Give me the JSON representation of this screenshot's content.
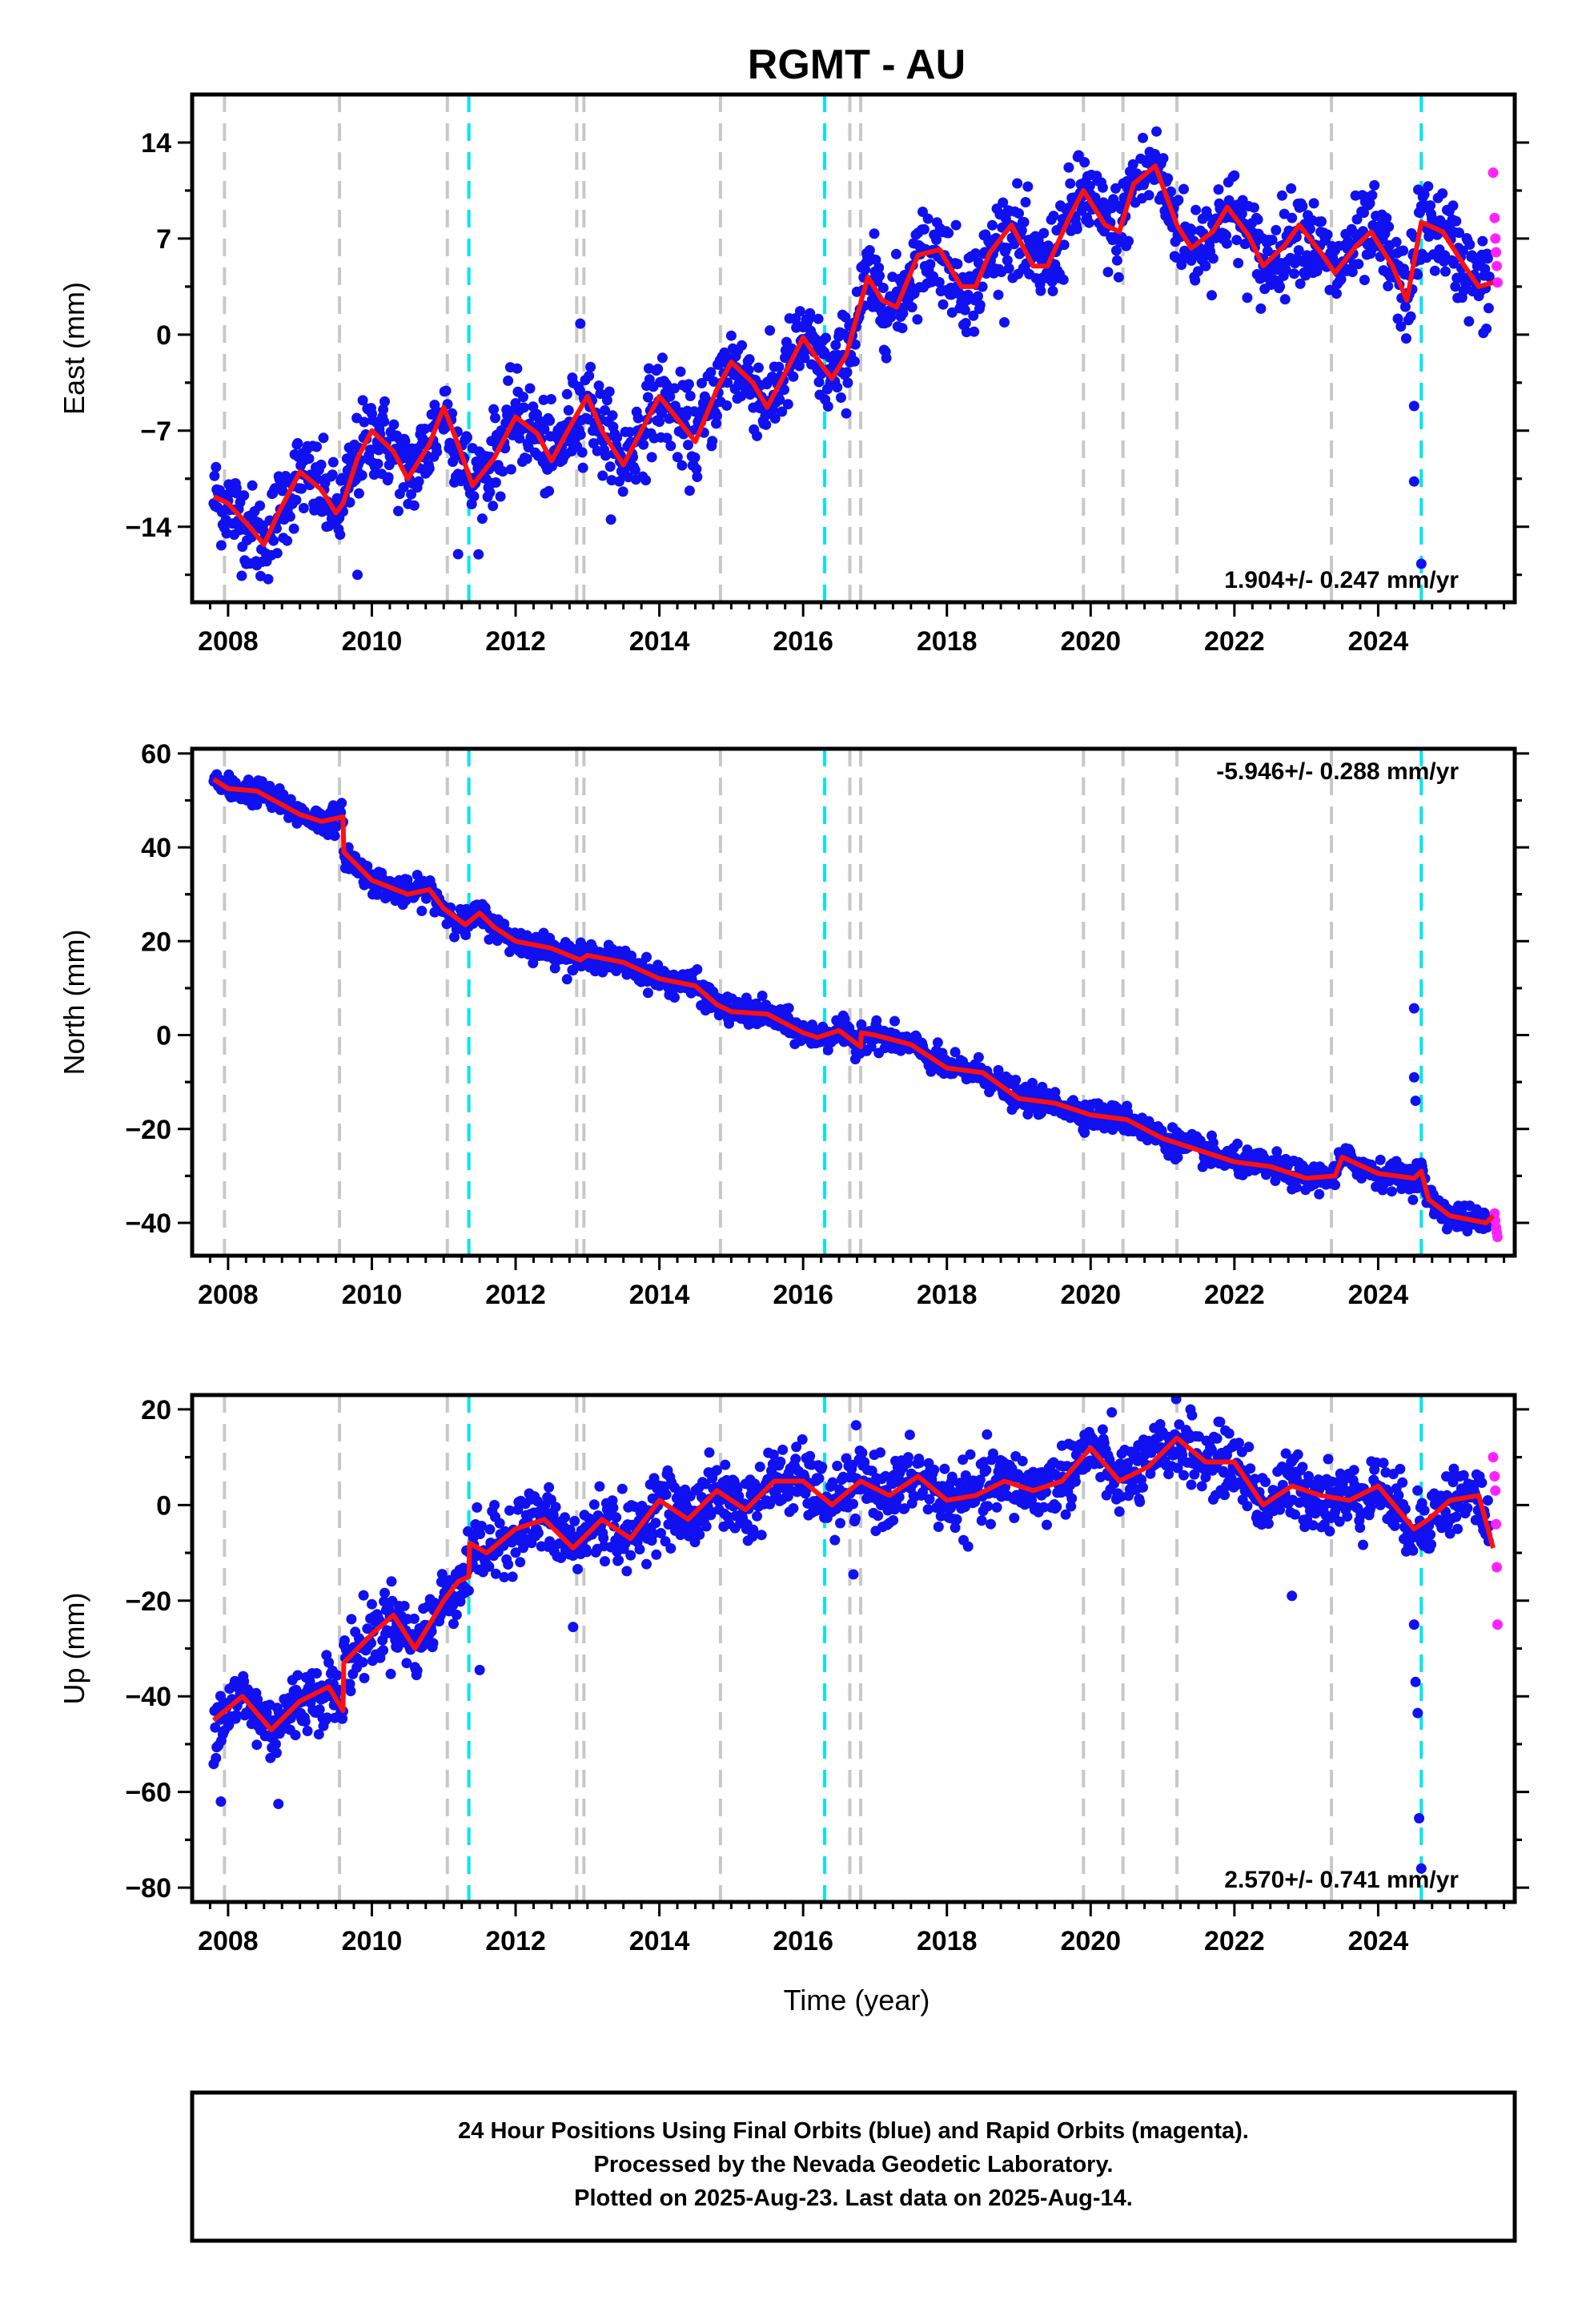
{
  "figure": {
    "title": "RGMT - AU",
    "xlabel": "Time (year)",
    "footer": [
      "24 Hour Positions Using Final Orbits (blue) and Rapid Orbits (magenta).",
      "Processed by the Nevada Geodetic Laboratory.",
      "Plotted on 2025-Aug-23. Last data on 2025-Aug-14."
    ]
  },
  "chart_data": [
    {
      "type": "scatter",
      "ylabel": "East (mm)",
      "rate_label": "1.904+/- 0.247 mm/yr",
      "xlim": [
        2007.5,
        2025.9
      ],
      "ylim": [
        -19.5,
        17.5
      ],
      "yticks": [
        -14,
        -7,
        0,
        7,
        14
      ],
      "xticks": [
        2008,
        2010,
        2012,
        2014,
        2016,
        2018,
        2020,
        2022,
        2024
      ],
      "trend": {
        "x": [
          2007.8,
          2025.6
        ],
        "y": [
          -12.5,
          4.5
        ]
      },
      "seasonal_amplitude": 2.4,
      "scatter_sd": 1.6,
      "steps": [],
      "model_x": [
        2007.8,
        2008.0,
        2008.3,
        2008.5,
        2008.7,
        2009.0,
        2009.3,
        2009.5,
        2009.6,
        2009.8,
        2010.0,
        2010.3,
        2010.5,
        2010.8,
        2011.0,
        2011.2,
        2011.4,
        2011.7,
        2012.0,
        2012.3,
        2012.5,
        2012.8,
        2013.0,
        2013.2,
        2013.5,
        2013.7,
        2014.0,
        2014.2,
        2014.5,
        2014.8,
        2015.0,
        2015.3,
        2015.5,
        2015.8,
        2016.0,
        2016.2,
        2016.4,
        2016.6,
        2016.9,
        2017.1,
        2017.3,
        2017.6,
        2017.9,
        2018.2,
        2018.4,
        2018.6,
        2018.9,
        2019.2,
        2019.4,
        2019.7,
        2019.9,
        2020.2,
        2020.4,
        2020.6,
        2020.9,
        2021.2,
        2021.4,
        2021.7,
        2021.9,
        2022.2,
        2022.4,
        2022.7,
        2022.9,
        2023.2,
        2023.4,
        2023.7,
        2023.9,
        2024.2,
        2024.4,
        2024.6,
        2024.9,
        2025.2,
        2025.4,
        2025.6
      ],
      "model_y": [
        -11.8,
        -12.3,
        -14.0,
        -15.3,
        -13.0,
        -10.0,
        -11.3,
        -13.0,
        -12.3,
        -9.0,
        -7.0,
        -8.5,
        -10.5,
        -8.0,
        -5.3,
        -8.0,
        -11.0,
        -9.0,
        -6.0,
        -7.2,
        -9.2,
        -6.3,
        -4.5,
        -7.0,
        -9.5,
        -7.5,
        -4.5,
        -5.8,
        -7.8,
        -4.0,
        -2.0,
        -3.5,
        -5.3,
        -2.3,
        -0.2,
        -1.8,
        -3.2,
        -1.5,
        4.2,
        2.5,
        2.0,
        5.8,
        6.2,
        3.5,
        3.5,
        6.0,
        8.0,
        5.0,
        5.0,
        8.5,
        10.5,
        8.0,
        7.5,
        11.0,
        12.3,
        8.0,
        6.3,
        7.5,
        9.3,
        7.2,
        5.0,
        6.5,
        8.0,
        6.0,
        4.5,
        6.5,
        7.5,
        5.0,
        2.5,
        8.2,
        7.5,
        5.0,
        3.5,
        3.8
      ],
      "outliers": [
        {
          "x": 2011.2,
          "y": -16.0
        },
        {
          "x": 2012.9,
          "y": 0.8
        },
        {
          "x": 2009.8,
          "y": -17.5
        },
        {
          "x": 2024.5,
          "y": -5.2
        },
        {
          "x": 2024.5,
          "y": -10.7
        },
        {
          "x": 2024.6,
          "y": -16.7
        }
      ],
      "rapid": {
        "x": [
          2025.6,
          2025.62,
          2025.63,
          2025.64,
          2025.65,
          2025.66
        ],
        "y": [
          11.8,
          8.5,
          7.0,
          6.0,
          5.0,
          3.8
        ]
      }
    },
    {
      "type": "scatter",
      "ylabel": "North (mm)",
      "rate_label": "-5.946+/- 0.288 mm/yr",
      "xlim": [
        2007.5,
        2025.9
      ],
      "ylim": [
        -47,
        61
      ],
      "yticks": [
        -40,
        -20,
        0,
        20,
        40,
        60
      ],
      "xticks": [
        2008,
        2010,
        2012,
        2014,
        2016,
        2018,
        2020,
        2022,
        2024
      ],
      "trend": {
        "x": [
          2007.8,
          2025.6
        ],
        "y": [
          55,
          -40
        ]
      },
      "seasonal_amplitude": 1.5,
      "scatter_sd": 1.4,
      "steps": [],
      "model_x": [
        2007.8,
        2008.0,
        2008.4,
        2008.7,
        2009.0,
        2009.3,
        2009.6,
        2009.61,
        2010.0,
        2010.5,
        2010.8,
        2011.0,
        2011.3,
        2011.5,
        2011.7,
        2012.0,
        2012.5,
        2012.9,
        2013.0,
        2013.5,
        2014.0,
        2014.5,
        2014.8,
        2015.0,
        2015.5,
        2016.0,
        2016.2,
        2016.5,
        2016.8,
        2016.81,
        2017.0,
        2017.5,
        2018.0,
        2018.5,
        2019.0,
        2019.5,
        2020.0,
        2020.5,
        2021.0,
        2021.5,
        2022.0,
        2022.5,
        2023.0,
        2023.4,
        2023.5,
        2024.0,
        2024.5,
        2024.6,
        2024.7,
        2025.0,
        2025.5,
        2025.6
      ],
      "model_y": [
        54.5,
        52.5,
        52.0,
        49.5,
        47.0,
        45.5,
        46.5,
        39.0,
        33.0,
        30.0,
        31.0,
        27.0,
        23.5,
        26.0,
        23.0,
        20.0,
        18.5,
        16.0,
        17.0,
        15.5,
        12.0,
        10.5,
        6.5,
        5.0,
        4.5,
        0.5,
        -0.5,
        1.0,
        -2.5,
        0.5,
        0.0,
        -2.0,
        -7.0,
        -8.0,
        -13.5,
        -14.5,
        -17.0,
        -18.0,
        -22.0,
        -24.5,
        -27.0,
        -28.0,
        -30.5,
        -30.0,
        -26.0,
        -29.5,
        -30.5,
        -29.0,
        -35.0,
        -38.5,
        -40.0,
        -38.5
      ],
      "outliers": [
        {
          "x": 2024.5,
          "y": 5.7
        },
        {
          "x": 2024.5,
          "y": -9.0
        },
        {
          "x": 2024.52,
          "y": -14.0
        }
      ],
      "rapid": {
        "x": [
          2025.62,
          2025.63,
          2025.64,
          2025.65,
          2025.66
        ],
        "y": [
          -38.0,
          -39.5,
          -41.0,
          -42.0,
          -43.0
        ]
      }
    },
    {
      "type": "scatter",
      "ylabel": "Up (mm)",
      "rate_label": "2.570+/- 0.741 mm/yr",
      "xlim": [
        2007.5,
        2025.9
      ],
      "ylim": [
        -83,
        23
      ],
      "yticks": [
        -80,
        -60,
        -40,
        -20,
        0,
        20
      ],
      "xticks": [
        2008,
        2010,
        2012,
        2014,
        2016,
        2018,
        2020,
        2022,
        2024
      ],
      "trend": {
        "x": [
          2007.8,
          2025.6
        ],
        "y": [
          -44,
          2
        ]
      },
      "seasonal_amplitude": 2.5,
      "scatter_sd": 3.5,
      "steps": [],
      "model_x": [
        2007.8,
        2008.2,
        2008.6,
        2009.0,
        2009.4,
        2009.6,
        2009.61,
        2010.0,
        2010.3,
        2010.6,
        2011.0,
        2011.2,
        2011.35,
        2011.36,
        2011.6,
        2012.0,
        2012.4,
        2012.8,
        2013.2,
        2013.6,
        2014.0,
        2014.4,
        2014.8,
        2015.2,
        2015.6,
        2016.0,
        2016.4,
        2016.8,
        2017.2,
        2017.6,
        2018.0,
        2018.4,
        2018.8,
        2019.2,
        2019.6,
        2020.0,
        2020.4,
        2020.8,
        2021.2,
        2021.6,
        2022.0,
        2022.4,
        2022.8,
        2023.2,
        2023.6,
        2024.0,
        2024.5,
        2024.7,
        2025.0,
        2025.4,
        2025.6
      ],
      "model_y": [
        -45.0,
        -40.0,
        -47.0,
        -41.0,
        -38.0,
        -43.0,
        -33.0,
        -27.0,
        -23.0,
        -30.0,
        -20.0,
        -16.0,
        -15.0,
        -8.0,
        -10.0,
        -5.0,
        -3.0,
        -9.0,
        -3.0,
        -7.0,
        1.0,
        -3.0,
        3.0,
        -1.0,
        5.0,
        5.0,
        0.0,
        5.0,
        2.0,
        6.0,
        1.0,
        2.0,
        5.0,
        3.0,
        5.0,
        12.0,
        5.0,
        8.0,
        14.0,
        9.0,
        9.0,
        0.0,
        4.0,
        2.0,
        1.0,
        4.0,
        -5.0,
        -3.0,
        1.0,
        2.0,
        -9.0
      ],
      "outliers": [
        {
          "x": 2007.9,
          "y": -62.0
        },
        {
          "x": 2008.7,
          "y": -62.5
        },
        {
          "x": 2011.5,
          "y": -34.5
        },
        {
          "x": 2012.8,
          "y": -25.5
        },
        {
          "x": 2016.7,
          "y": -14.5
        },
        {
          "x": 2022.8,
          "y": -19.0
        },
        {
          "x": 2024.5,
          "y": -25.0
        },
        {
          "x": 2024.52,
          "y": -37.0
        },
        {
          "x": 2024.55,
          "y": -43.5
        },
        {
          "x": 2024.57,
          "y": -65.5
        },
        {
          "x": 2024.6,
          "y": -76.0
        }
      ],
      "rapid": {
        "x": [
          2025.6,
          2025.62,
          2025.63,
          2025.64,
          2025.65,
          2025.66
        ],
        "y": [
          10.0,
          6.0,
          3.0,
          -4.0,
          -13.0,
          -25.0
        ]
      }
    }
  ],
  "events": {
    "gray": [
      2007.95,
      2009.55,
      2011.05,
      2012.85,
      2012.95,
      2014.85,
      2016.65,
      2016.8,
      2019.9,
      2020.45,
      2021.2,
      2023.35
    ],
    "cyan": [
      2011.35,
      2016.3,
      2024.6
    ]
  },
  "colors": {
    "final": "#1010f0",
    "rapid": "#ff22ff",
    "model": "#ff1010",
    "event_gray": "#c8c8c8",
    "event_cyan": "#00e5ee",
    "frame": "#000000"
  }
}
